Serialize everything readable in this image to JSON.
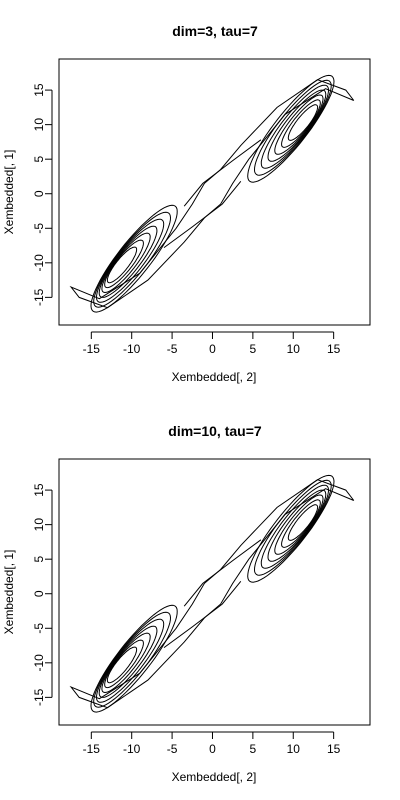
{
  "chart_data": [
    {
      "type": "line",
      "title": "dim=3, tau=7",
      "xlabel": "Xembedded[, 2]",
      "ylabel": "Xembedded[, 1]",
      "xlim": [
        -19,
        19.5
      ],
      "ylim": [
        -19,
        19.5
      ],
      "xticks": [
        -15,
        -10,
        -5,
        0,
        5,
        10,
        15
      ],
      "yticks": [
        -15,
        -10,
        -5,
        0,
        5,
        10,
        15
      ],
      "grid": false,
      "legend": "none",
      "series": [
        {
          "x": [
            17.5,
            14,
            9,
            4.5,
            2.5,
            1,
            -1,
            -3.5,
            -8,
            -13,
            -16.5,
            -17.5,
            -14,
            -9,
            -4.5,
            -2.5,
            -1,
            1,
            3.5,
            8,
            13,
            16.5,
            17.5
          ],
          "y": [
            13.5,
            15.2,
            11.5,
            5,
            1.5,
            -1.5,
            -3.5,
            -7,
            -12.5,
            -16.5,
            -15,
            -13.5,
            -15.2,
            -11.5,
            -5,
            -1.5,
            1.5,
            3.5,
            7,
            12.5,
            16.5,
            15,
            13.5
          ]
        }
      ]
    },
    {
      "type": "line",
      "title": "dim=10, tau=7",
      "xlabel": "Xembedded[, 2]",
      "ylabel": "Xembedded[, 1]",
      "xlim": [
        -19,
        19.5
      ],
      "ylim": [
        -19,
        19.5
      ],
      "xticks": [
        -15,
        -10,
        -5,
        0,
        5,
        10,
        15
      ],
      "yticks": [
        -15,
        -10,
        -5,
        0,
        5,
        10,
        15
      ],
      "grid": false,
      "legend": "none",
      "series": [
        {
          "x": [
            17.5,
            14,
            9,
            4.5,
            2.5,
            1,
            -1,
            -3.5,
            -8,
            -13,
            -16.5,
            -17.5,
            -14,
            -9,
            -4.5,
            -2.5,
            -1,
            1,
            3.5,
            8,
            13,
            16.5,
            17.5
          ],
          "y": [
            13.5,
            15.2,
            11.5,
            5,
            1.5,
            -1.5,
            -3.5,
            -7,
            -12.5,
            -16.5,
            -15,
            -13.5,
            -15.2,
            -11.5,
            -5,
            -1.5,
            1.5,
            3.5,
            7,
            12.5,
            16.5,
            15,
            13.5
          ]
        }
      ]
    }
  ]
}
